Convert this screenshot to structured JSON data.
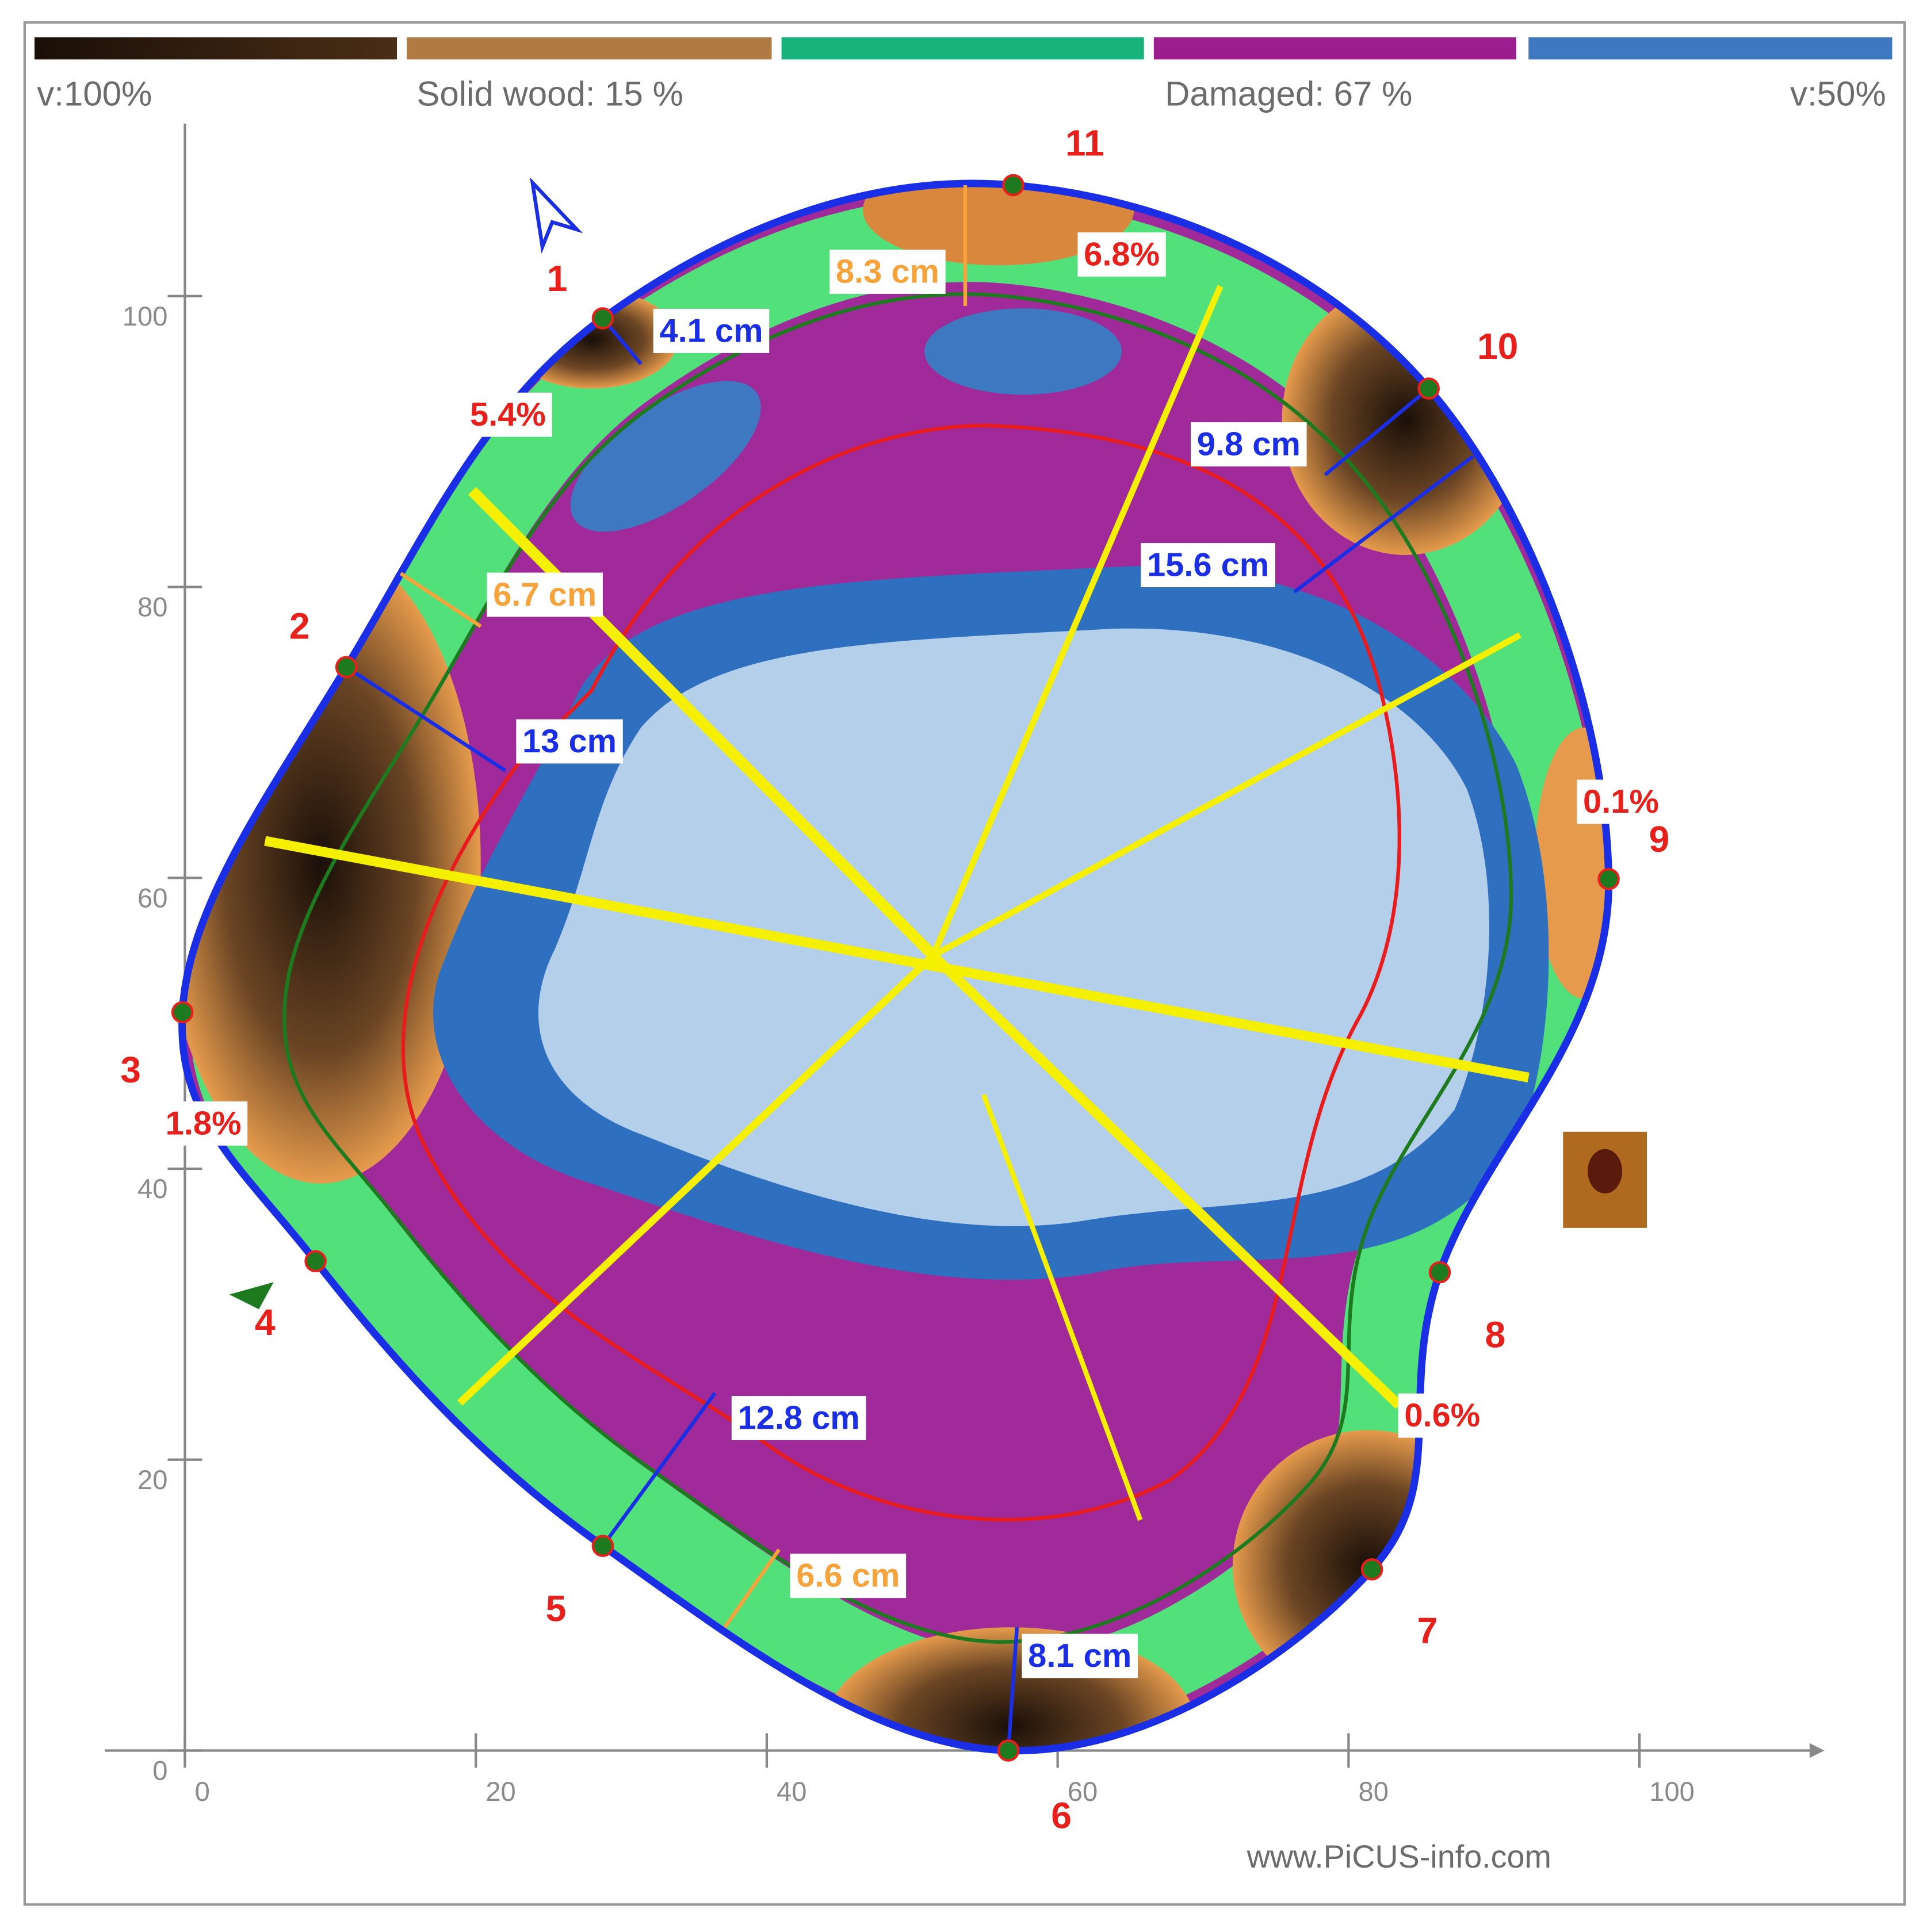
{
  "legend": {
    "items": [
      "v:100%",
      "Solid wood: 15 %",
      "Damaged: 67 %",
      "v:50%"
    ]
  },
  "axes": {
    "x_ticks": [
      0,
      20,
      40,
      60,
      80,
      100
    ],
    "y_ticks": [
      0,
      20,
      40,
      60,
      80,
      100
    ]
  },
  "sensors": [
    "1",
    "2",
    "3",
    "4",
    "5",
    "6",
    "7",
    "8",
    "9",
    "10",
    "11"
  ],
  "measurements": [
    "8.3 cm",
    "6.8%",
    "4.1 cm",
    "5.4%",
    "9.8 cm",
    "15.6 cm",
    "6.7 cm",
    "13 cm",
    "0.1%",
    "1.8%",
    "12.8 cm",
    "0.6%",
    "6.6 cm",
    "8.1 cm"
  ],
  "footer": "www.PiCUS-info.com"
}
